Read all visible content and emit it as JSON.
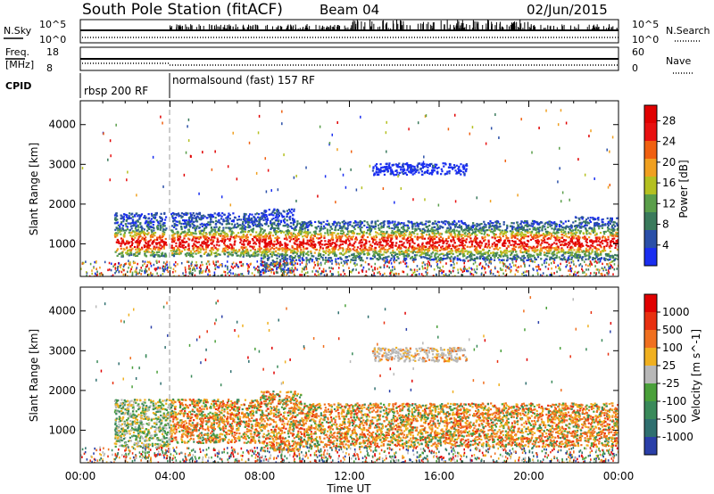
{
  "header": {
    "title": "South Pole Station (fitACF)",
    "beam": "Beam 04",
    "date": "02/Jun/2015"
  },
  "aux_panels": {
    "nsky_label": "N.Sky",
    "nsky_ticks": [
      "10^5",
      "10^0"
    ],
    "nsearch_label": "N.Search",
    "nsearch_ticks": [
      "10^5",
      "10^0"
    ],
    "freq_label_1": "Freq.",
    "freq_label_2": "[MHz]",
    "freq_ticks": [
      "18",
      "8"
    ],
    "nave_label": "Nave",
    "nave_ticks": [
      "60",
      "0"
    ],
    "cpid_label": "CPID",
    "cpid_modes": [
      {
        "label": "rbsp 200 RF",
        "start_hour": 0,
        "end_hour": 4
      },
      {
        "label": "normalsound (fast) 157 RF",
        "start_hour": 4,
        "end_hour": 24
      }
    ]
  },
  "chart_data": [
    {
      "type": "heatmap",
      "title": "Power",
      "xlabel": "",
      "ylabel": "Slant Range [km]",
      "xlim": [
        0,
        24
      ],
      "ylim": [
        180,
        4600
      ],
      "yticks": [
        "1000",
        "2000",
        "3000",
        "4000"
      ],
      "colorbar": {
        "label": "Power [dB]",
        "ticks": [
          "4",
          "8",
          "12",
          "16",
          "20",
          "24",
          "28"
        ],
        "range": [
          0,
          31
        ],
        "colors": [
          "#1a2ef0",
          "#2a4fa8",
          "#3a7a5c",
          "#5a9e4a",
          "#b4c020",
          "#f0a020",
          "#f06010",
          "#e81010",
          "#e00000"
        ]
      },
      "regions": [
        {
          "hours": [
            1.5,
            3.8
          ],
          "range_km": [
            700,
            1800
          ],
          "level_db": "8-28"
        },
        {
          "hours": [
            4.0,
            8.0
          ],
          "range_km": [
            700,
            1800
          ],
          "level_db": "8-28"
        },
        {
          "hours": [
            8.0,
            9.5
          ],
          "range_km": [
            300,
            1900
          ],
          "level_db": "4-16"
        },
        {
          "hours": [
            9.5,
            22.0
          ],
          "range_km": [
            600,
            1600
          ],
          "level_db": "8-31"
        },
        {
          "hours": [
            22.0,
            24.0
          ],
          "range_km": [
            600,
            1700
          ],
          "level_db": "4-28"
        },
        {
          "hours": [
            13.0,
            17.2
          ],
          "range_km": [
            2750,
            3050
          ],
          "level_db": "4"
        }
      ]
    },
    {
      "type": "heatmap",
      "title": "Velocity",
      "xlabel": "Time UT",
      "ylabel": "Slant Range [km]",
      "xlim": [
        0,
        24
      ],
      "ylim": [
        180,
        4600
      ],
      "xticks": [
        "00:00",
        "04:00",
        "08:00",
        "12:00",
        "16:00",
        "20:00",
        "00:00"
      ],
      "yticks": [
        "1000",
        "2000",
        "3000",
        "4000"
      ],
      "colorbar": {
        "label": "Velocity [m s^-1]",
        "ticks": [
          "1000",
          "500",
          "100",
          "25",
          "-25",
          "-100",
          "-500",
          "-1000"
        ],
        "colors": [
          "#2a3fa8",
          "#2f6f6f",
          "#3a8a5a",
          "#4aa03a",
          "#b8b8b8",
          "#f0b020",
          "#f07020",
          "#e83010",
          "#e00000"
        ]
      },
      "regions": [
        {
          "hours": [
            1.5,
            4.0
          ],
          "range_km": [
            600,
            1800
          ],
          "velocity": "100 to -100"
        },
        {
          "hours": [
            4.0,
            8.0
          ],
          "range_km": [
            700,
            1800
          ],
          "velocity": "-25 to -500"
        },
        {
          "hours": [
            8.0,
            9.8
          ],
          "range_km": [
            500,
            2000
          ],
          "velocity": "100 to -500"
        },
        {
          "hours": [
            9.8,
            24.0
          ],
          "range_km": [
            600,
            1700
          ],
          "velocity": "100 to -500"
        },
        {
          "hours": [
            13.0,
            17.2
          ],
          "range_km": [
            2750,
            3100
          ],
          "velocity": "25 to -25"
        }
      ]
    }
  ]
}
